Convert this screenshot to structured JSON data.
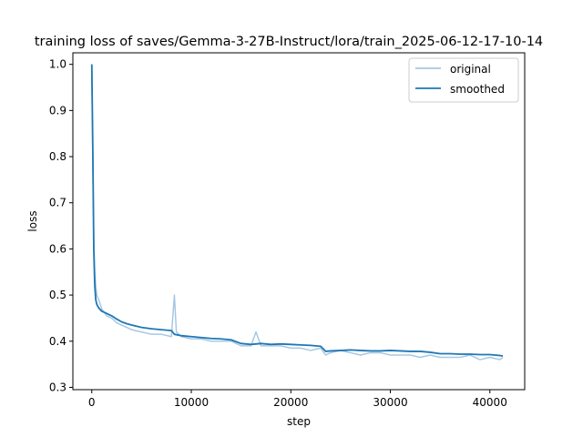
{
  "chart_data": {
    "type": "line",
    "title": "training loss of saves/Gemma-3-27B-Instruct/lora/train_2025-06-12-17-10-14",
    "xlabel": "step",
    "ylabel": "loss",
    "xlim": [
      -1900,
      43500
    ],
    "ylim": [
      0.295,
      1.025
    ],
    "xticks": [
      0,
      10000,
      20000,
      30000,
      40000
    ],
    "xtick_labels": [
      "0",
      "10000",
      "20000",
      "30000",
      "40000"
    ],
    "yticks": [
      0.3,
      0.4,
      0.5,
      0.6,
      0.7,
      0.8,
      0.9,
      1.0
    ],
    "ytick_labels": [
      "0.3",
      "0.4",
      "0.5",
      "0.6",
      "0.7",
      "0.8",
      "0.9",
      "1.0"
    ],
    "grid": false,
    "legend_position": "top-right",
    "series": [
      {
        "name": "original",
        "color": "#a6c8e3",
        "x": [
          0,
          100,
          200,
          300,
          400,
          500,
          700,
          1000,
          1500,
          2000,
          2500,
          3000,
          3500,
          4000,
          5000,
          6000,
          7000,
          8000,
          8300,
          8500,
          9000,
          10000,
          11000,
          12000,
          13000,
          14000,
          15000,
          16000,
          16500,
          17000,
          18000,
          19000,
          20000,
          21000,
          22000,
          23000,
          23500,
          24000,
          25000,
          26000,
          27000,
          28000,
          29000,
          30000,
          31000,
          32000,
          33000,
          34000,
          35000,
          36000,
          37000,
          38000,
          39000,
          40000,
          41000,
          41300
        ],
        "y": [
          1.0,
          0.8,
          0.62,
          0.55,
          0.52,
          0.5,
          0.49,
          0.47,
          0.455,
          0.45,
          0.44,
          0.435,
          0.43,
          0.425,
          0.42,
          0.415,
          0.415,
          0.41,
          0.5,
          0.42,
          0.41,
          0.405,
          0.405,
          0.4,
          0.4,
          0.4,
          0.39,
          0.39,
          0.42,
          0.39,
          0.39,
          0.39,
          0.385,
          0.385,
          0.38,
          0.385,
          0.37,
          0.375,
          0.38,
          0.375,
          0.37,
          0.375,
          0.375,
          0.37,
          0.37,
          0.37,
          0.365,
          0.37,
          0.365,
          0.365,
          0.365,
          0.37,
          0.36,
          0.365,
          0.36,
          0.365
        ]
      },
      {
        "name": "smoothed",
        "color": "#1f77b4",
        "x": [
          0,
          100,
          200,
          300,
          400,
          500,
          700,
          1000,
          1500,
          2000,
          2500,
          3000,
          3500,
          4000,
          5000,
          6000,
          7000,
          8000,
          8300,
          9000,
          10000,
          11000,
          12000,
          13000,
          14000,
          15000,
          16000,
          17000,
          18000,
          19000,
          20000,
          21000,
          22000,
          23000,
          23500,
          24000,
          25000,
          26000,
          27000,
          28000,
          29000,
          30000,
          31000,
          32000,
          33000,
          34000,
          35000,
          36000,
          37000,
          38000,
          39000,
          40000,
          41000,
          41300
        ],
        "y": [
          1.0,
          0.82,
          0.6,
          0.52,
          0.49,
          0.48,
          0.472,
          0.465,
          0.46,
          0.455,
          0.448,
          0.442,
          0.438,
          0.435,
          0.43,
          0.427,
          0.425,
          0.423,
          0.415,
          0.412,
          0.41,
          0.408,
          0.406,
          0.405,
          0.403,
          0.395,
          0.393,
          0.395,
          0.393,
          0.394,
          0.393,
          0.392,
          0.391,
          0.389,
          0.378,
          0.379,
          0.38,
          0.381,
          0.38,
          0.379,
          0.379,
          0.38,
          0.379,
          0.378,
          0.378,
          0.376,
          0.373,
          0.373,
          0.372,
          0.372,
          0.371,
          0.371,
          0.369,
          0.368
        ]
      }
    ]
  }
}
